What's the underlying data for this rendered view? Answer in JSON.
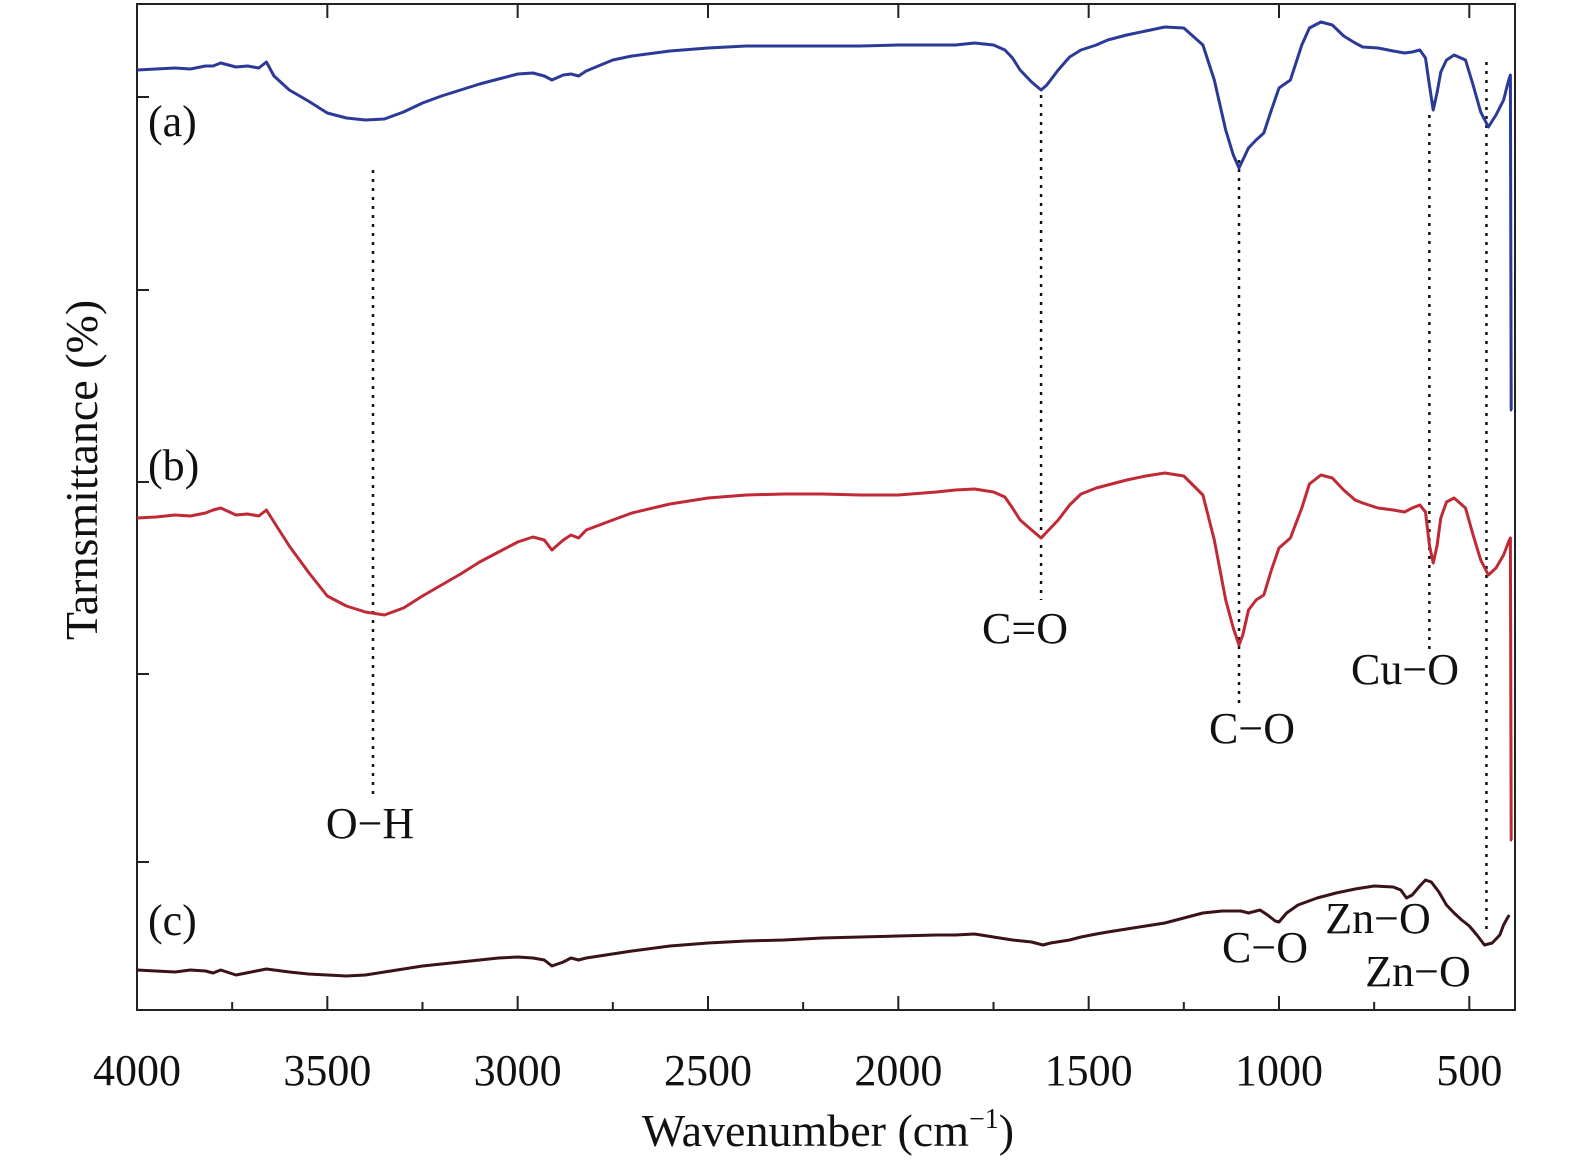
{
  "chart_data": {
    "type": "line",
    "title": "",
    "xlabel": "Wavenumber (cm",
    "xlabel_sup": "−1",
    "xlabel_close": ")",
    "ylabel": "Tarnsmittance (%)",
    "xlim": [
      4000,
      380
    ],
    "x_reversed": true,
    "y_ticks_shown": false,
    "grid": false,
    "x_ticks": [
      4000,
      3500,
      3000,
      2500,
      2000,
      1500,
      1000,
      500
    ],
    "x_tick_labels": [
      "4000",
      "3500",
      "3000",
      "2500",
      "2000",
      "1500",
      "1000",
      "500"
    ],
    "series": [
      {
        "name": "(a)",
        "color": "#2b3a97",
        "points": [
          [
            4000,
            70
          ],
          [
            3950,
            69
          ],
          [
            3900,
            68
          ],
          [
            3860,
            69
          ],
          [
            3820,
            66
          ],
          [
            3800,
            66
          ],
          [
            3780,
            63
          ],
          [
            3740,
            67
          ],
          [
            3710,
            66
          ],
          [
            3680,
            68
          ],
          [
            3660,
            62
          ],
          [
            3640,
            76
          ],
          [
            3600,
            90
          ],
          [
            3550,
            101
          ],
          [
            3500,
            113
          ],
          [
            3450,
            118
          ],
          [
            3400,
            120
          ],
          [
            3350,
            119
          ],
          [
            3300,
            112
          ],
          [
            3250,
            103
          ],
          [
            3200,
            96
          ],
          [
            3150,
            90
          ],
          [
            3100,
            84
          ],
          [
            3050,
            79
          ],
          [
            3000,
            74
          ],
          [
            2960,
            73
          ],
          [
            2930,
            76
          ],
          [
            2910,
            80
          ],
          [
            2880,
            75
          ],
          [
            2860,
            74
          ],
          [
            2840,
            76
          ],
          [
            2820,
            71
          ],
          [
            2750,
            60
          ],
          [
            2700,
            56
          ],
          [
            2600,
            51
          ],
          [
            2500,
            48
          ],
          [
            2400,
            46
          ],
          [
            2300,
            46
          ],
          [
            2200,
            46
          ],
          [
            2100,
            46
          ],
          [
            2000,
            45
          ],
          [
            1900,
            45
          ],
          [
            1850,
            45
          ],
          [
            1800,
            43
          ],
          [
            1750,
            45
          ],
          [
            1720,
            50
          ],
          [
            1700,
            58
          ],
          [
            1680,
            70
          ],
          [
            1650,
            82
          ],
          [
            1625,
            90
          ],
          [
            1610,
            85
          ],
          [
            1580,
            70
          ],
          [
            1550,
            57
          ],
          [
            1520,
            50
          ],
          [
            1480,
            45
          ],
          [
            1450,
            40
          ],
          [
            1400,
            35
          ],
          [
            1350,
            31
          ],
          [
            1300,
            27
          ],
          [
            1250,
            28
          ],
          [
            1200,
            45
          ],
          [
            1170,
            80
          ],
          [
            1140,
            130
          ],
          [
            1120,
            155
          ],
          [
            1105,
            168
          ],
          [
            1095,
            160
          ],
          [
            1080,
            148
          ],
          [
            1060,
            140
          ],
          [
            1040,
            133
          ],
          [
            1020,
            110
          ],
          [
            1000,
            88
          ],
          [
            970,
            80
          ],
          [
            940,
            45
          ],
          [
            920,
            28
          ],
          [
            890,
            22
          ],
          [
            860,
            25
          ],
          [
            830,
            36
          ],
          [
            800,
            43
          ],
          [
            780,
            47
          ],
          [
            740,
            48
          ],
          [
            700,
            51
          ],
          [
            670,
            53
          ],
          [
            650,
            52
          ],
          [
            630,
            50
          ],
          [
            615,
            58
          ],
          [
            605,
            85
          ],
          [
            595,
            110
          ],
          [
            585,
            93
          ],
          [
            575,
            72
          ],
          [
            560,
            60
          ],
          [
            540,
            55
          ],
          [
            510,
            60
          ],
          [
            490,
            85
          ],
          [
            470,
            112
          ],
          [
            450,
            127
          ],
          [
            430,
            115
          ],
          [
            410,
            100
          ],
          [
            400,
            85
          ],
          [
            395,
            78
          ],
          [
            392,
            75
          ],
          [
            390,
            410
          ],
          [
            388,
            410
          ]
        ]
      },
      {
        "name": "(b)",
        "color": "#bf2a36",
        "points": [
          [
            4000,
            518
          ],
          [
            3950,
            517
          ],
          [
            3900,
            515
          ],
          [
            3860,
            516
          ],
          [
            3820,
            513
          ],
          [
            3800,
            510
          ],
          [
            3780,
            508
          ],
          [
            3740,
            515
          ],
          [
            3710,
            514
          ],
          [
            3680,
            516
          ],
          [
            3660,
            510
          ],
          [
            3640,
            522
          ],
          [
            3600,
            546
          ],
          [
            3550,
            572
          ],
          [
            3500,
            596
          ],
          [
            3450,
            606
          ],
          [
            3400,
            612
          ],
          [
            3350,
            615
          ],
          [
            3300,
            608
          ],
          [
            3250,
            596
          ],
          [
            3200,
            585
          ],
          [
            3150,
            574
          ],
          [
            3100,
            562
          ],
          [
            3050,
            552
          ],
          [
            3000,
            542
          ],
          [
            2960,
            537
          ],
          [
            2930,
            540
          ],
          [
            2910,
            550
          ],
          [
            2880,
            540
          ],
          [
            2860,
            535
          ],
          [
            2840,
            538
          ],
          [
            2820,
            530
          ],
          [
            2750,
            520
          ],
          [
            2700,
            513
          ],
          [
            2600,
            504
          ],
          [
            2500,
            498
          ],
          [
            2400,
            495
          ],
          [
            2300,
            494
          ],
          [
            2200,
            494
          ],
          [
            2100,
            495
          ],
          [
            2000,
            495
          ],
          [
            1900,
            492
          ],
          [
            1850,
            490
          ],
          [
            1800,
            489
          ],
          [
            1750,
            492
          ],
          [
            1720,
            497
          ],
          [
            1700,
            508
          ],
          [
            1680,
            520
          ],
          [
            1650,
            530
          ],
          [
            1625,
            538
          ],
          [
            1610,
            532
          ],
          [
            1580,
            520
          ],
          [
            1550,
            505
          ],
          [
            1520,
            494
          ],
          [
            1480,
            488
          ],
          [
            1450,
            485
          ],
          [
            1400,
            480
          ],
          [
            1350,
            476
          ],
          [
            1300,
            473
          ],
          [
            1250,
            476
          ],
          [
            1200,
            495
          ],
          [
            1170,
            540
          ],
          [
            1140,
            600
          ],
          [
            1120,
            628
          ],
          [
            1105,
            645
          ],
          [
            1095,
            635
          ],
          [
            1080,
            610
          ],
          [
            1060,
            600
          ],
          [
            1040,
            595
          ],
          [
            1020,
            570
          ],
          [
            1000,
            548
          ],
          [
            970,
            538
          ],
          [
            940,
            508
          ],
          [
            920,
            484
          ],
          [
            890,
            475
          ],
          [
            860,
            478
          ],
          [
            830,
            490
          ],
          [
            800,
            500
          ],
          [
            780,
            503
          ],
          [
            740,
            508
          ],
          [
            700,
            510
          ],
          [
            670,
            512
          ],
          [
            650,
            508
          ],
          [
            630,
            505
          ],
          [
            615,
            512
          ],
          [
            605,
            545
          ],
          [
            595,
            563
          ],
          [
            585,
            546
          ],
          [
            575,
            518
          ],
          [
            560,
            502
          ],
          [
            540,
            498
          ],
          [
            510,
            508
          ],
          [
            490,
            535
          ],
          [
            470,
            560
          ],
          [
            450,
            575
          ],
          [
            430,
            568
          ],
          [
            410,
            555
          ],
          [
            400,
            545
          ],
          [
            395,
            540
          ],
          [
            392,
            538
          ],
          [
            390,
            840
          ],
          [
            388,
            840
          ]
        ]
      },
      {
        "name": "(c)",
        "color": "#3a1318",
        "points": [
          [
            4000,
            970
          ],
          [
            3950,
            971
          ],
          [
            3900,
            972
          ],
          [
            3860,
            970
          ],
          [
            3820,
            971
          ],
          [
            3800,
            973
          ],
          [
            3780,
            970
          ],
          [
            3740,
            975
          ],
          [
            3700,
            972
          ],
          [
            3660,
            969
          ],
          [
            3600,
            972
          ],
          [
            3550,
            974
          ],
          [
            3500,
            975
          ],
          [
            3450,
            976
          ],
          [
            3400,
            975
          ],
          [
            3350,
            972
          ],
          [
            3300,
            969
          ],
          [
            3250,
            966
          ],
          [
            3200,
            964
          ],
          [
            3150,
            962
          ],
          [
            3100,
            960
          ],
          [
            3050,
            958
          ],
          [
            3000,
            957
          ],
          [
            2960,
            958
          ],
          [
            2930,
            960
          ],
          [
            2910,
            966
          ],
          [
            2880,
            962
          ],
          [
            2860,
            958
          ],
          [
            2840,
            960
          ],
          [
            2820,
            958
          ],
          [
            2700,
            951
          ],
          [
            2600,
            946
          ],
          [
            2500,
            943
          ],
          [
            2400,
            941
          ],
          [
            2300,
            940
          ],
          [
            2200,
            938
          ],
          [
            2100,
            937
          ],
          [
            2000,
            936
          ],
          [
            1900,
            935
          ],
          [
            1850,
            935
          ],
          [
            1800,
            934
          ],
          [
            1750,
            937
          ],
          [
            1700,
            940
          ],
          [
            1650,
            942
          ],
          [
            1620,
            945
          ],
          [
            1600,
            943
          ],
          [
            1550,
            940
          ],
          [
            1520,
            937
          ],
          [
            1480,
            934
          ],
          [
            1450,
            932
          ],
          [
            1400,
            929
          ],
          [
            1350,
            926
          ],
          [
            1300,
            923
          ],
          [
            1250,
            918
          ],
          [
            1200,
            913
          ],
          [
            1150,
            911
          ],
          [
            1100,
            911
          ],
          [
            1080,
            913
          ],
          [
            1050,
            910
          ],
          [
            1030,
            915
          ],
          [
            1010,
            921
          ],
          [
            1000,
            922
          ],
          [
            980,
            913
          ],
          [
            950,
            905
          ],
          [
            900,
            898
          ],
          [
            850,
            893
          ],
          [
            800,
            889
          ],
          [
            750,
            886
          ],
          [
            700,
            887
          ],
          [
            680,
            890
          ],
          [
            665,
            898
          ],
          [
            650,
            895
          ],
          [
            630,
            886
          ],
          [
            615,
            880
          ],
          [
            600,
            882
          ],
          [
            580,
            892
          ],
          [
            560,
            905
          ],
          [
            540,
            913
          ],
          [
            520,
            920
          ],
          [
            500,
            926
          ],
          [
            480,
            935
          ],
          [
            460,
            945
          ],
          [
            440,
            943
          ],
          [
            420,
            935
          ],
          [
            410,
            925
          ],
          [
            400,
            918
          ],
          [
            395,
            915
          ]
        ]
      }
    ],
    "guides": [
      {
        "x": 3380,
        "from_series": "(a)",
        "to_label": "O−H"
      },
      {
        "x": 1625,
        "from_series": "(a)",
        "to_label": "C=O"
      },
      {
        "x": 1105,
        "from_series": "(a)",
        "to_label": "C−O"
      },
      {
        "x": 605,
        "from_series": "(a)",
        "to_label": "Cu−O"
      },
      {
        "x": 455,
        "from_series": "(a)",
        "to_label": "Zn−O"
      }
    ],
    "annotations": [
      {
        "text": "O−H",
        "x": 3380
      },
      {
        "text": "C=O",
        "x": 1625
      },
      {
        "text": "C−O",
        "x": 1105
      },
      {
        "text": "Cu−O",
        "x": 605
      },
      {
        "text": "C−O",
        "x": 1010
      },
      {
        "text": "Zn−O",
        "x": 640
      },
      {
        "text": "Zn−O",
        "x": 455
      }
    ]
  }
}
